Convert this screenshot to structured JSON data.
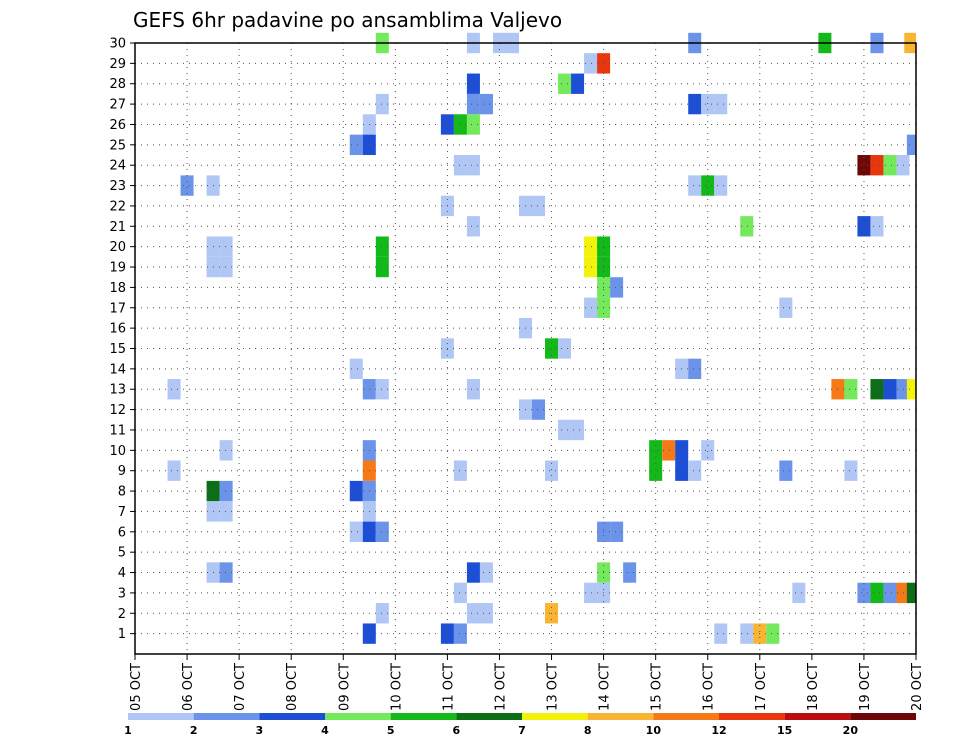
{
  "chart_data": {
    "type": "heatmap",
    "title": "GEFS 6hr padavine po ansamblima Valjevo",
    "x_tick_labels": [
      "05 OCT",
      "06 OCT",
      "07 OCT",
      "08 OCT",
      "09 OCT",
      "10 OCT",
      "11 OCT",
      "12 OCT",
      "13 OCT",
      "14 OCT",
      "15 OCT",
      "16 OCT",
      "17 OCT",
      "18 OCT",
      "19 OCT",
      "20 OCT"
    ],
    "y_tick_labels": [
      "1",
      "2",
      "3",
      "4",
      "5",
      "6",
      "7",
      "8",
      "9",
      "10",
      "11",
      "12",
      "13",
      "14",
      "15",
      "16",
      "17",
      "18",
      "19",
      "20",
      "21",
      "22",
      "23",
      "24",
      "25",
      "26",
      "27",
      "28",
      "29",
      "30"
    ],
    "xlim_days": [
      0,
      15
    ],
    "ylim_members": [
      0,
      30
    ],
    "grid": true,
    "legend_placement": "bottom",
    "color_scale": [
      {
        "min": 1,
        "color": "#b0c6f4"
      },
      {
        "min": 2,
        "color": "#6b93ea"
      },
      {
        "min": 3,
        "color": "#1c4fd6"
      },
      {
        "min": 4,
        "color": "#74e95c"
      },
      {
        "min": 5,
        "color": "#12b919"
      },
      {
        "min": 6,
        "color": "#0c6e16"
      },
      {
        "min": 7,
        "color": "#f2f20a"
      },
      {
        "min": 8,
        "color": "#f9b431"
      },
      {
        "min": 10,
        "color": "#f57a17"
      },
      {
        "min": 12,
        "color": "#e8360d"
      },
      {
        "min": 15,
        "color": "#bb0d0d"
      },
      {
        "min": 20,
        "color": "#6e0808"
      }
    ],
    "legend_ticks": [
      "1",
      "2",
      "3",
      "4",
      "5",
      "6",
      "7",
      "8",
      "10",
      "12",
      "15",
      "20"
    ],
    "cells": [
      {
        "member": 30,
        "day": 4.75,
        "value": 4.5
      },
      {
        "member": 30,
        "day": 6.5,
        "value": 1.5
      },
      {
        "member": 30,
        "day": 7.0,
        "value": 1.5
      },
      {
        "member": 30,
        "day": 7.25,
        "value": 1.5
      },
      {
        "member": 30,
        "day": 10.75,
        "value": 2.5
      },
      {
        "member": 30,
        "day": 13.25,
        "value": 5.5
      },
      {
        "member": 30,
        "day": 14.25,
        "value": 2.5
      },
      {
        "member": 30,
        "day": 14.9,
        "value": 9
      },
      {
        "member": 29,
        "day": 8.75,
        "value": 1.5
      },
      {
        "member": 29,
        "day": 9.0,
        "value": 13
      },
      {
        "member": 28,
        "day": 6.5,
        "value": 3.5
      },
      {
        "member": 28,
        "day": 8.25,
        "value": 4.5
      },
      {
        "member": 28,
        "day": 8.5,
        "value": 3.5
      },
      {
        "member": 27,
        "day": 4.75,
        "value": 1.5
      },
      {
        "member": 27,
        "day": 6.5,
        "value": 2.5
      },
      {
        "member": 27,
        "day": 6.75,
        "value": 2.5
      },
      {
        "member": 27,
        "day": 10.75,
        "value": 3.5
      },
      {
        "member": 27,
        "day": 11.0,
        "value": 1.5
      },
      {
        "member": 27,
        "day": 11.25,
        "value": 1.5
      },
      {
        "member": 26,
        "day": 4.5,
        "value": 1.5
      },
      {
        "member": 26,
        "day": 6.0,
        "value": 3.5
      },
      {
        "member": 26,
        "day": 6.25,
        "value": 5.5
      },
      {
        "member": 26,
        "day": 6.5,
        "value": 4.5
      },
      {
        "member": 25,
        "day": 4.25,
        "value": 2.5
      },
      {
        "member": 25,
        "day": 4.5,
        "value": 3.5
      },
      {
        "member": 25,
        "day": 14.95,
        "value": 2.5
      },
      {
        "member": 24,
        "day": 6.25,
        "value": 1.5
      },
      {
        "member": 24,
        "day": 6.5,
        "value": 1.5
      },
      {
        "member": 24,
        "day": 14.0,
        "value": 22
      },
      {
        "member": 24,
        "day": 14.25,
        "value": 13
      },
      {
        "member": 24,
        "day": 14.5,
        "value": 4.5
      },
      {
        "member": 24,
        "day": 14.75,
        "value": 1.5
      },
      {
        "member": 23,
        "day": 1.0,
        "value": 2.5
      },
      {
        "member": 23,
        "day": 1.5,
        "value": 1.5
      },
      {
        "member": 23,
        "day": 10.75,
        "value": 1.5
      },
      {
        "member": 23,
        "day": 11.0,
        "value": 5.5
      },
      {
        "member": 23,
        "day": 11.25,
        "value": 1.5
      },
      {
        "member": 22,
        "day": 6.0,
        "value": 1.5
      },
      {
        "member": 22,
        "day": 7.5,
        "value": 1.5
      },
      {
        "member": 22,
        "day": 7.75,
        "value": 1.5
      },
      {
        "member": 21,
        "day": 6.5,
        "value": 1.5
      },
      {
        "member": 21,
        "day": 11.75,
        "value": 4.5
      },
      {
        "member": 21,
        "day": 14.0,
        "value": 3.5
      },
      {
        "member": 21,
        "day": 14.25,
        "value": 1.5
      },
      {
        "member": 20,
        "day": 1.5,
        "value": 1.5
      },
      {
        "member": 20,
        "day": 1.75,
        "value": 1.5
      },
      {
        "member": 20,
        "day": 4.75,
        "value": 5.5
      },
      {
        "member": 20,
        "day": 8.75,
        "value": 7.5
      },
      {
        "member": 20,
        "day": 9.0,
        "value": 5.5
      },
      {
        "member": 19,
        "day": 1.5,
        "value": 1.5
      },
      {
        "member": 19,
        "day": 1.75,
        "value": 1.5
      },
      {
        "member": 19,
        "day": 4.75,
        "value": 5.5
      },
      {
        "member": 19,
        "day": 8.75,
        "value": 7.5
      },
      {
        "member": 19,
        "day": 9.0,
        "value": 5.5
      },
      {
        "member": 18,
        "day": 9.0,
        "value": 4.5
      },
      {
        "member": 18,
        "day": 9.25,
        "value": 2.5
      },
      {
        "member": 17,
        "day": 8.75,
        "value": 1.5
      },
      {
        "member": 17,
        "day": 9.0,
        "value": 4.5
      },
      {
        "member": 17,
        "day": 12.5,
        "value": 1.5
      },
      {
        "member": 16,
        "day": 7.5,
        "value": 1.5
      },
      {
        "member": 15,
        "day": 6.0,
        "value": 1.5
      },
      {
        "member": 15,
        "day": 8.0,
        "value": 5.5
      },
      {
        "member": 15,
        "day": 8.25,
        "value": 1.5
      },
      {
        "member": 14,
        "day": 4.25,
        "value": 1.5
      },
      {
        "member": 14,
        "day": 10.5,
        "value": 1.5
      },
      {
        "member": 14,
        "day": 10.75,
        "value": 2.5
      },
      {
        "member": 13,
        "day": 0.75,
        "value": 1.5
      },
      {
        "member": 13,
        "day": 4.5,
        "value": 2.5
      },
      {
        "member": 13,
        "day": 4.75,
        "value": 1.5
      },
      {
        "member": 13,
        "day": 6.5,
        "value": 1.5
      },
      {
        "member": 13,
        "day": 13.5,
        "value": 11
      },
      {
        "member": 13,
        "day": 13.75,
        "value": 4.5
      },
      {
        "member": 13,
        "day": 14.25,
        "value": 6.5
      },
      {
        "member": 13,
        "day": 14.5,
        "value": 3.5
      },
      {
        "member": 13,
        "day": 14.75,
        "value": 2.5
      },
      {
        "member": 13,
        "day": 14.95,
        "value": 7.5
      },
      {
        "member": 12,
        "day": 7.5,
        "value": 1.5
      },
      {
        "member": 12,
        "day": 7.75,
        "value": 2.5
      },
      {
        "member": 11,
        "day": 8.25,
        "value": 1.5
      },
      {
        "member": 11,
        "day": 8.5,
        "value": 1.5
      },
      {
        "member": 10,
        "day": 1.75,
        "value": 1.5
      },
      {
        "member": 10,
        "day": 4.5,
        "value": 2.5
      },
      {
        "member": 10,
        "day": 10.0,
        "value": 5.5
      },
      {
        "member": 10,
        "day": 10.25,
        "value": 11
      },
      {
        "member": 10,
        "day": 10.5,
        "value": 3.5
      },
      {
        "member": 10,
        "day": 11.0,
        "value": 1.5
      },
      {
        "member": 9,
        "day": 0.75,
        "value": 1.5
      },
      {
        "member": 9,
        "day": 4.5,
        "value": 11
      },
      {
        "member": 9,
        "day": 6.25,
        "value": 1.5
      },
      {
        "member": 9,
        "day": 8.0,
        "value": 1.5
      },
      {
        "member": 9,
        "day": 10.0,
        "value": 5.5
      },
      {
        "member": 9,
        "day": 10.5,
        "value": 3.5
      },
      {
        "member": 9,
        "day": 10.75,
        "value": 1.5
      },
      {
        "member": 9,
        "day": 12.5,
        "value": 2.5
      },
      {
        "member": 9,
        "day": 13.75,
        "value": 1.5
      },
      {
        "member": 8,
        "day": 1.5,
        "value": 6.5
      },
      {
        "member": 8,
        "day": 1.75,
        "value": 2.5
      },
      {
        "member": 8,
        "day": 4.25,
        "value": 3.5
      },
      {
        "member": 8,
        "day": 4.5,
        "value": 2.5
      },
      {
        "member": 7,
        "day": 1.5,
        "value": 1.5
      },
      {
        "member": 7,
        "day": 1.75,
        "value": 1.5
      },
      {
        "member": 7,
        "day": 4.5,
        "value": 1.5
      },
      {
        "member": 6,
        "day": 4.25,
        "value": 1.5
      },
      {
        "member": 6,
        "day": 4.5,
        "value": 3.5
      },
      {
        "member": 6,
        "day": 4.75,
        "value": 2.5
      },
      {
        "member": 6,
        "day": 9.0,
        "value": 2.5
      },
      {
        "member": 6,
        "day": 9.25,
        "value": 2.5
      },
      {
        "member": 4,
        "day": 1.5,
        "value": 1.5
      },
      {
        "member": 4,
        "day": 1.75,
        "value": 2.5
      },
      {
        "member": 4,
        "day": 6.5,
        "value": 3.5
      },
      {
        "member": 4,
        "day": 6.75,
        "value": 1.5
      },
      {
        "member": 4,
        "day": 9.0,
        "value": 4.5
      },
      {
        "member": 4,
        "day": 9.5,
        "value": 2.5
      },
      {
        "member": 3,
        "day": 6.25,
        "value": 1.5
      },
      {
        "member": 3,
        "day": 8.75,
        "value": 1.5
      },
      {
        "member": 3,
        "day": 9.0,
        "value": 1.5
      },
      {
        "member": 3,
        "day": 12.75,
        "value": 1.5
      },
      {
        "member": 3,
        "day": 14.0,
        "value": 2.5
      },
      {
        "member": 3,
        "day": 14.25,
        "value": 5.5
      },
      {
        "member": 3,
        "day": 14.5,
        "value": 2.5
      },
      {
        "member": 3,
        "day": 14.75,
        "value": 11
      },
      {
        "member": 3,
        "day": 14.95,
        "value": 6.5
      },
      {
        "member": 2,
        "day": 4.75,
        "value": 1.5
      },
      {
        "member": 2,
        "day": 6.5,
        "value": 1.5
      },
      {
        "member": 2,
        "day": 6.75,
        "value": 1.5
      },
      {
        "member": 2,
        "day": 8.0,
        "value": 9
      },
      {
        "member": 1,
        "day": 4.5,
        "value": 3.5
      },
      {
        "member": 1,
        "day": 6.0,
        "value": 3.5
      },
      {
        "member": 1,
        "day": 6.25,
        "value": 2.5
      },
      {
        "member": 1,
        "day": 11.25,
        "value": 1.5
      },
      {
        "member": 1,
        "day": 11.75,
        "value": 1.5
      },
      {
        "member": 1,
        "day": 12.0,
        "value": 9
      },
      {
        "member": 1,
        "day": 12.25,
        "value": 4.5
      }
    ]
  }
}
